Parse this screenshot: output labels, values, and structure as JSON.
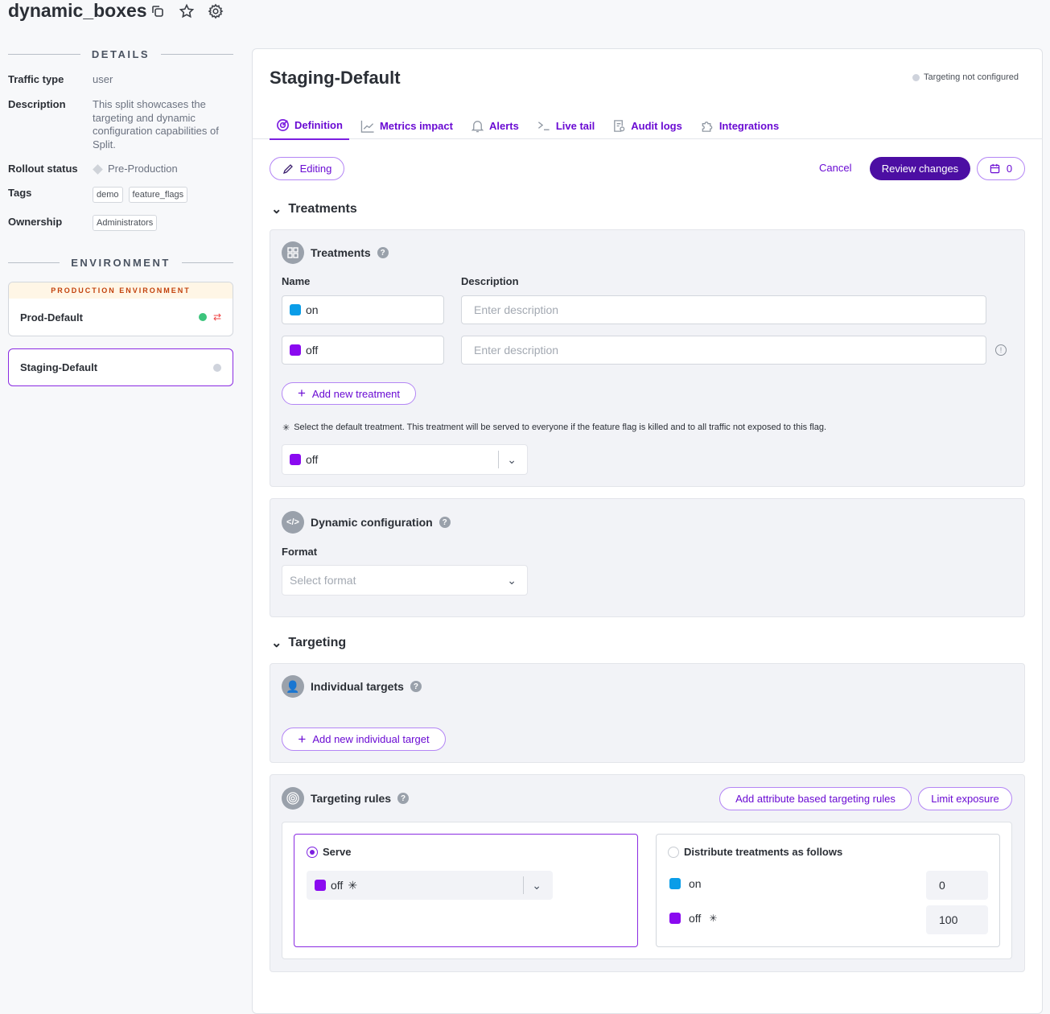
{
  "header": {
    "title": "dynamic_boxes",
    "icons": [
      "copy-icon",
      "star-icon",
      "gear-icon"
    ]
  },
  "details": {
    "heading": "DETAILS",
    "traffic_type_label": "Traffic type",
    "traffic_type": "user",
    "description_label": "Description",
    "description": "This split showcases the targeting and dynamic configuration capabilities of Split.",
    "rollout_label": "Rollout status",
    "rollout": "Pre-Production",
    "tags_label": "Tags",
    "tags": [
      "demo",
      "feature_flags"
    ],
    "ownership_label": "Ownership",
    "ownership": "Administrators"
  },
  "environment": {
    "heading": "ENVIRONMENT",
    "prod_banner": "PRODUCTION ENVIRONMENT",
    "prod_name": "Prod-Default",
    "staging_name": "Staging-Default",
    "colors": {
      "prod_status": "#3cc47c",
      "selected_border": "#8a2be2"
    }
  },
  "main": {
    "title": "Staging-Default",
    "status": "Targeting not configured",
    "tabs": [
      {
        "label": "Definition",
        "icon": "target-icon"
      },
      {
        "label": "Metrics impact",
        "icon": "line-chart-icon"
      },
      {
        "label": "Alerts",
        "icon": "bell-icon"
      },
      {
        "label": "Live tail",
        "icon": "terminal-icon"
      },
      {
        "label": "Audit logs",
        "icon": "audit-icon"
      },
      {
        "label": "Integrations",
        "icon": "puzzle-icon"
      }
    ],
    "editing": "Editing",
    "cancel": "Cancel",
    "review": "Review changes",
    "scheduled_count": "0"
  },
  "treatments": {
    "section": "Treatments",
    "panel_title": "Treatments",
    "name_label": "Name",
    "desc_label": "Description",
    "rows": [
      {
        "name": "on",
        "color": "#0a9de8",
        "desc_placeholder": "Enter description"
      },
      {
        "name": "off",
        "color": "#8a0af0",
        "desc_placeholder": "Enter description"
      }
    ],
    "add": "Add new treatment",
    "default_note": "Select the default treatment. This treatment will be served to everyone if the feature flag is killed and to all traffic not exposed to this flag.",
    "default_value": "off"
  },
  "dynamic_config": {
    "title": "Dynamic configuration",
    "format_label": "Format",
    "format_placeholder": "Select format"
  },
  "targeting": {
    "section": "Targeting",
    "individual_title": "Individual targets",
    "add_individual": "Add new individual target",
    "rules_title": "Targeting rules",
    "add_rules": "Add attribute based targeting rules",
    "limit": "Limit exposure",
    "serve_label": "Serve",
    "serve_value": "off",
    "distribute_label": "Distribute treatments as follows",
    "distribution": [
      {
        "name": "on",
        "value": "0"
      },
      {
        "name": "off",
        "value": "100"
      }
    ]
  }
}
